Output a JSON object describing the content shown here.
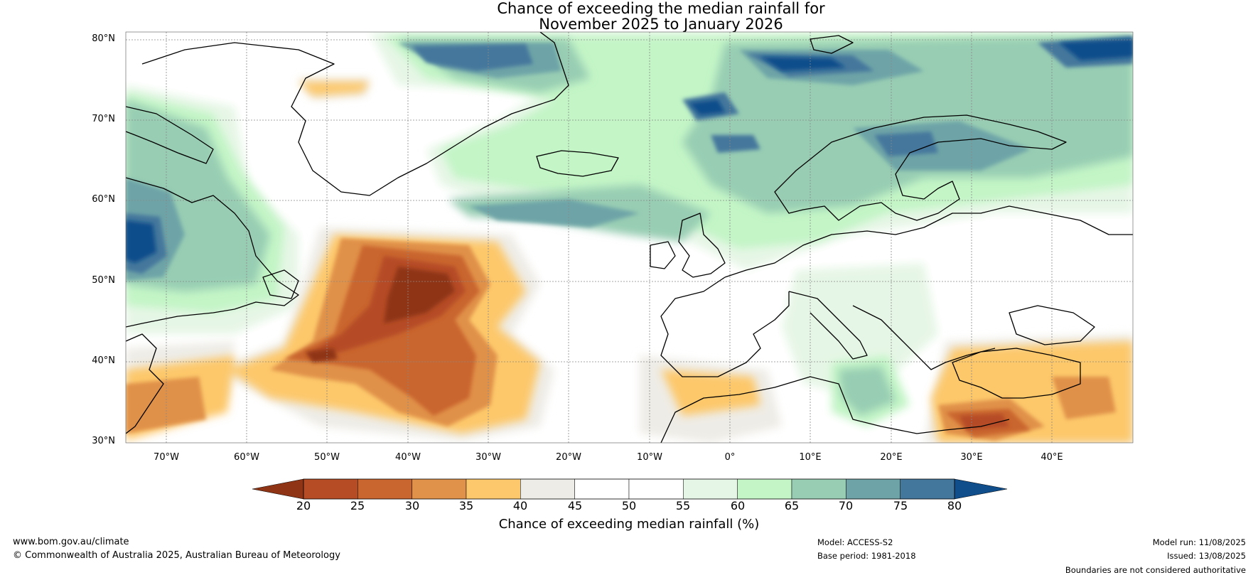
{
  "title": {
    "line1": "Chance of exceeding the median rainfall for",
    "line2": "November 2025 to January 2026"
  },
  "map": {
    "lat_ticks": [
      "80°N",
      "70°N",
      "60°N",
      "50°N",
      "40°N",
      "30°N"
    ],
    "lon_ticks": [
      "70°W",
      "60°W",
      "50°W",
      "40°W",
      "30°W",
      "20°W",
      "10°W",
      "0°",
      "10°E",
      "20°E",
      "30°E",
      "40°E"
    ],
    "lat_range": [
      30,
      81
    ],
    "lon_range": [
      -75,
      50
    ]
  },
  "colorbar": {
    "label": "Chance of exceeding median rainfall (%)",
    "ticks": [
      "20",
      "25",
      "30",
      "35",
      "40",
      "45",
      "50",
      "55",
      "60",
      "65",
      "70",
      "75",
      "80"
    ],
    "colors": [
      "#8f3516",
      "#b54c26",
      "#c9652f",
      "#e0914a",
      "#fdc86b",
      "#eeece6",
      "#ffffff",
      "#ffffff",
      "#e6f6e6",
      "#c3f5c6",
      "#98cdb3",
      "#6ea4a7",
      "#44779c",
      "#104e8b"
    ]
  },
  "footer": {
    "website": "www.bom.gov.au/climate",
    "copyright": "© Commonwealth of Australia 2025, Australian Bureau of Meteorology",
    "model": "Model: ACCESS-S2",
    "base_period": "Base period: 1981-2018",
    "model_run": "Model run: 11/08/2025",
    "issued": "Issued: 13/08/2025",
    "disclaimer": "Boundaries are not considered authoritative"
  }
}
